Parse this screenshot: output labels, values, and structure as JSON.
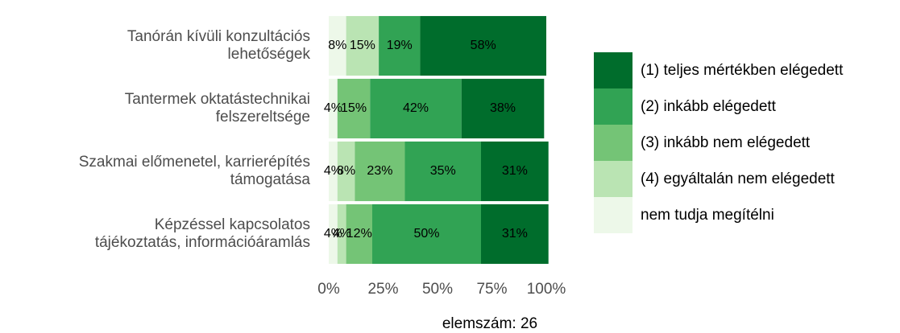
{
  "chart_data": {
    "type": "stacked_barh",
    "categories": [
      [
        "Tanórán kívüli konzultációs",
        "lehetőségek"
      ],
      [
        "Tantermek oktatástechnikai",
        "felszereltsége"
      ],
      [
        "Szakmai előmenetel, karrierépítés",
        "támogatása"
      ],
      [
        "Képzéssel kapcsolatos",
        "tájékoztatás, információáramlás"
      ]
    ],
    "series": [
      {
        "name": "(1) teljes mértékben elégedett",
        "color": "#006d2c",
        "values": [
          58,
          38,
          31,
          31
        ],
        "value_labels": [
          "58%",
          "38%",
          "31%",
          "31%"
        ]
      },
      {
        "name": "(2) inkább elégedett",
        "color": "#31a354",
        "values": [
          19,
          42,
          35,
          50
        ],
        "value_labels": [
          "19%",
          "42%",
          "35%",
          "50%"
        ]
      },
      {
        "name": "(3) inkább nem elégedett",
        "color": "#74c476",
        "values": [
          0,
          15,
          23,
          12
        ],
        "value_labels": [
          null,
          "15%",
          "23%",
          "12%"
        ]
      },
      {
        "name": "(4) egyáltalán nem elégedett",
        "color": "#bae4b3",
        "values": [
          15,
          0,
          8,
          4
        ],
        "value_labels": [
          "15%",
          null,
          "8%",
          "4%"
        ]
      },
      {
        "name": "nem tudja megítélni",
        "color": "#edf8e9",
        "values": [
          8,
          4,
          4,
          4
        ],
        "value_labels": [
          "8%",
          "4%",
          "4%",
          "4%"
        ]
      }
    ],
    "xlim": [
      0,
      100
    ],
    "xticks": [
      {
        "value": 0,
        "label": "0%"
      },
      {
        "value": 25,
        "label": "25%"
      },
      {
        "value": 50,
        "label": "50%"
      },
      {
        "value": 75,
        "label": "75%"
      },
      {
        "value": 100,
        "label": "100%"
      }
    ],
    "xlabel": "elemszám: 26",
    "legend": "right"
  }
}
